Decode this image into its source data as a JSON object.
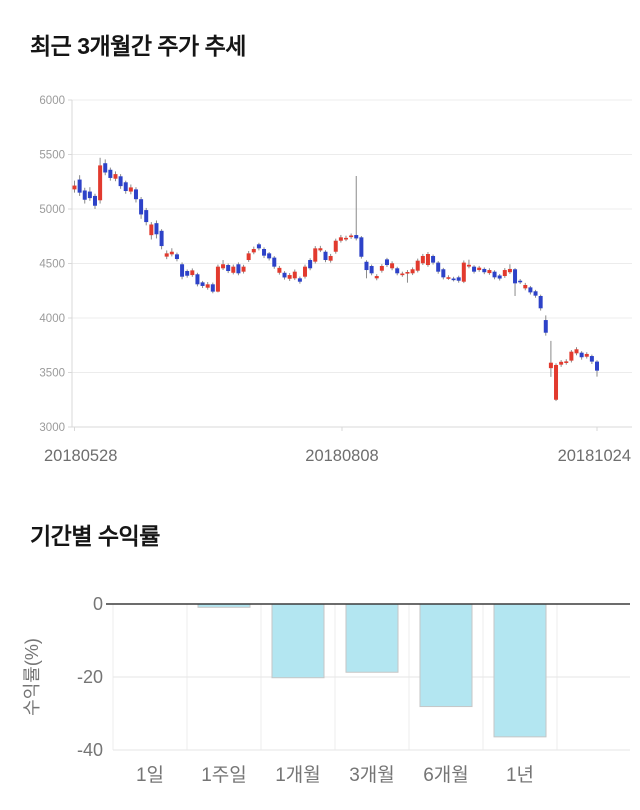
{
  "chart_data": [
    {
      "type": "candlestick",
      "title": "최근 3개월간 주가 추세",
      "x_tick_labels": [
        "20180528",
        "20180808",
        "20181024"
      ],
      "y_ticks": [
        3000,
        3500,
        4000,
        4500,
        5000,
        5500,
        6000
      ],
      "ylim": [
        3000,
        6000
      ],
      "grid": true,
      "legend": "none",
      "colors": {
        "bullish": "#e23a2e",
        "bearish": "#2d42c8",
        "wick": "#8a8a8a"
      },
      "candles_format": "open,high,low,close",
      "candles": [
        [
          5180,
          5260,
          5150,
          5215
        ],
        [
          5270,
          5310,
          5120,
          5150
        ],
        [
          5170,
          5195,
          5050,
          5085
        ],
        [
          5160,
          5200,
          5075,
          5100
        ],
        [
          5120,
          5140,
          5000,
          5030
        ],
        [
          5080,
          5470,
          5050,
          5400
        ],
        [
          5420,
          5455,
          5310,
          5335
        ],
        [
          5360,
          5380,
          5260,
          5285
        ],
        [
          5278,
          5345,
          5255,
          5320
        ],
        [
          5300,
          5320,
          5185,
          5210
        ],
        [
          5245,
          5260,
          5140,
          5165
        ],
        [
          5160,
          5225,
          5135,
          5198
        ],
        [
          5180,
          5200,
          5060,
          5090
        ],
        [
          5090,
          5110,
          4910,
          4950
        ],
        [
          4990,
          5010,
          4850,
          4880
        ],
        [
          4760,
          4880,
          4720,
          4858
        ],
        [
          4870,
          4895,
          4730,
          4768
        ],
        [
          4800,
          4815,
          4630,
          4660
        ],
        [
          4563,
          4620,
          4540,
          4593
        ],
        [
          4584,
          4640,
          4565,
          4608
        ],
        [
          4584,
          4600,
          4520,
          4541
        ],
        [
          4493,
          4510,
          4355,
          4379
        ],
        [
          4431,
          4445,
          4370,
          4388
        ],
        [
          4394,
          4455,
          4378,
          4437
        ],
        [
          4401,
          4415,
          4290,
          4309
        ],
        [
          4327,
          4340,
          4275,
          4294
        ],
        [
          4278,
          4330,
          4260,
          4309
        ],
        [
          4309,
          4325,
          4227,
          4242
        ],
        [
          4242,
          4490,
          4235,
          4471
        ],
        [
          4456,
          4532,
          4440,
          4493
        ],
        [
          4486,
          4500,
          4412,
          4431
        ],
        [
          4415,
          4490,
          4400,
          4471
        ],
        [
          4493,
          4510,
          4392,
          4410
        ],
        [
          4425,
          4488,
          4408,
          4471
        ],
        [
          4532,
          4615,
          4515,
          4593
        ],
        [
          4602,
          4655,
          4585,
          4633
        ],
        [
          4676,
          4690,
          4620,
          4639
        ],
        [
          4633,
          4648,
          4550,
          4572
        ],
        [
          4593,
          4605,
          4528,
          4547
        ],
        [
          4554,
          4568,
          4452,
          4471
        ],
        [
          4415,
          4478,
          4398,
          4460
        ],
        [
          4415,
          4430,
          4352,
          4372
        ],
        [
          4360,
          4412,
          4340,
          4394
        ],
        [
          4364,
          4445,
          4348,
          4425
        ],
        [
          4364,
          4380,
          4315,
          4333
        ],
        [
          4379,
          4490,
          4362,
          4471
        ],
        [
          4532,
          4548,
          4438,
          4456
        ],
        [
          4517,
          4660,
          4500,
          4639
        ],
        [
          4620,
          4662,
          4605,
          4640
        ],
        [
          4608,
          4622,
          4512,
          4532
        ],
        [
          4526,
          4588,
          4508,
          4569
        ],
        [
          4608,
          4728,
          4590,
          4709
        ],
        [
          4709,
          4762,
          4692,
          4740
        ],
        [
          4722,
          4755,
          4705,
          4735
        ],
        [
          4742,
          4775,
          4726,
          4757
        ],
        [
          4761,
          5303,
          4712,
          4730
        ],
        [
          4740,
          4752,
          4545,
          4562
        ],
        [
          4516,
          4530,
          4364,
          4440
        ],
        [
          4477,
          4490,
          4392,
          4410
        ],
        [
          4364,
          4402,
          4346,
          4385
        ],
        [
          4434,
          4494,
          4416,
          4477
        ],
        [
          4538,
          4552,
          4468,
          4486
        ],
        [
          4456,
          4520,
          4438,
          4502
        ],
        [
          4456,
          4470,
          4392,
          4410
        ],
        [
          4398,
          4425,
          4378,
          4408
        ],
        [
          4415,
          4440,
          4324,
          4422
        ],
        [
          4410,
          4464,
          4394,
          4447
        ],
        [
          4434,
          4545,
          4418,
          4526
        ],
        [
          4502,
          4588,
          4486,
          4569
        ],
        [
          4486,
          4605,
          4470,
          4587
        ],
        [
          4569,
          4582,
          4490,
          4508
        ],
        [
          4508,
          4522,
          4406,
          4425
        ],
        [
          4447,
          4460,
          4354,
          4373
        ],
        [
          4368,
          4392,
          4350,
          4374
        ],
        [
          4362,
          4378,
          4336,
          4356
        ],
        [
          4373,
          4388,
          4324,
          4342
        ],
        [
          4333,
          4528,
          4320,
          4508
        ],
        [
          4472,
          4535,
          4456,
          4488
        ],
        [
          4471,
          4484,
          4408,
          4425
        ],
        [
          4440,
          4478,
          4424,
          4462
        ],
        [
          4450,
          4464,
          4402,
          4420
        ],
        [
          4412,
          4456,
          4396,
          4440
        ],
        [
          4425,
          4438,
          4355,
          4373
        ],
        [
          4390,
          4404,
          4344,
          4362
        ],
        [
          4385,
          4458,
          4368,
          4440
        ],
        [
          4420,
          4493,
          4404,
          4450
        ],
        [
          4447,
          4458,
          4202,
          4318
        ],
        [
          4342,
          4358,
          4312,
          4332
        ],
        [
          4272,
          4322,
          4254,
          4303
        ],
        [
          4281,
          4294,
          4216,
          4235
        ],
        [
          4245,
          4258,
          4186,
          4205
        ],
        [
          4202,
          4214,
          4068,
          4089
        ],
        [
          3981,
          4024,
          3838,
          3865
        ],
        [
          3540,
          3790,
          3460,
          3590
        ],
        [
          3250,
          3584,
          3238,
          3569
        ],
        [
          3572,
          3614,
          3552,
          3598
        ],
        [
          3592,
          3622,
          3572,
          3602
        ],
        [
          3609,
          3706,
          3592,
          3691
        ],
        [
          3676,
          3732,
          3658,
          3713
        ],
        [
          3682,
          3696,
          3618,
          3640
        ],
        [
          3645,
          3686,
          3628,
          3670
        ],
        [
          3651,
          3664,
          3578,
          3600
        ],
        [
          3600,
          3612,
          3462,
          3517
        ]
      ]
    },
    {
      "type": "bar",
      "title": "기간별 수익률",
      "categories": [
        "1일",
        "1주일",
        "1개월",
        "3개월",
        "6개월",
        "1년"
      ],
      "values": [
        0,
        -0.9,
        -20.2,
        -18.7,
        -28.1,
        -36.4
      ],
      "xlabel": "",
      "ylabel": "수익률(%)",
      "y_tick_labels": [
        "0",
        "-20",
        "-40"
      ],
      "y_ticks": [
        0,
        -20,
        -40
      ],
      "ylim": [
        -40,
        0
      ],
      "grid": true,
      "legend": "none",
      "bar_color": "#b3e6f1",
      "bar_border": "#c6c6c6"
    }
  ]
}
